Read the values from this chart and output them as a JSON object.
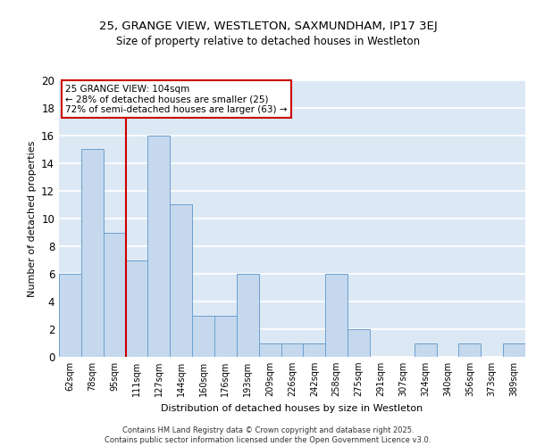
{
  "title": "25, GRANGE VIEW, WESTLETON, SAXMUNDHAM, IP17 3EJ",
  "subtitle": "Size of property relative to detached houses in Westleton",
  "xlabel": "Distribution of detached houses by size in Westleton",
  "ylabel": "Number of detached properties",
  "categories": [
    "62sqm",
    "78sqm",
    "95sqm",
    "111sqm",
    "127sqm",
    "144sqm",
    "160sqm",
    "176sqm",
    "193sqm",
    "209sqm",
    "226sqm",
    "242sqm",
    "258sqm",
    "275sqm",
    "291sqm",
    "307sqm",
    "324sqm",
    "340sqm",
    "356sqm",
    "373sqm",
    "389sqm"
  ],
  "values": [
    6,
    15,
    9,
    7,
    16,
    11,
    3,
    3,
    6,
    1,
    1,
    1,
    6,
    2,
    0,
    0,
    1,
    0,
    1,
    0,
    1
  ],
  "bar_color": "#c5d8ed",
  "bar_edge_color": "#6ca0d0",
  "background_color": "#dce9f5",
  "grid_color": "#ffffff",
  "red_line_x": 2.5,
  "annotation_text": "25 GRANGE VIEW: 104sqm\n← 28% of detached houses are smaller (25)\n72% of semi-detached houses are larger (63) →",
  "annotation_box_color": "#ffffff",
  "annotation_box_edge": "#cc0000",
  "ylim": [
    0,
    20
  ],
  "yticks": [
    0,
    2,
    4,
    6,
    8,
    10,
    12,
    14,
    16,
    18,
    20
  ],
  "footer_line1": "Contains HM Land Registry data © Crown copyright and database right 2025.",
  "footer_line2": "Contains public sector information licensed under the Open Government Licence v3.0."
}
